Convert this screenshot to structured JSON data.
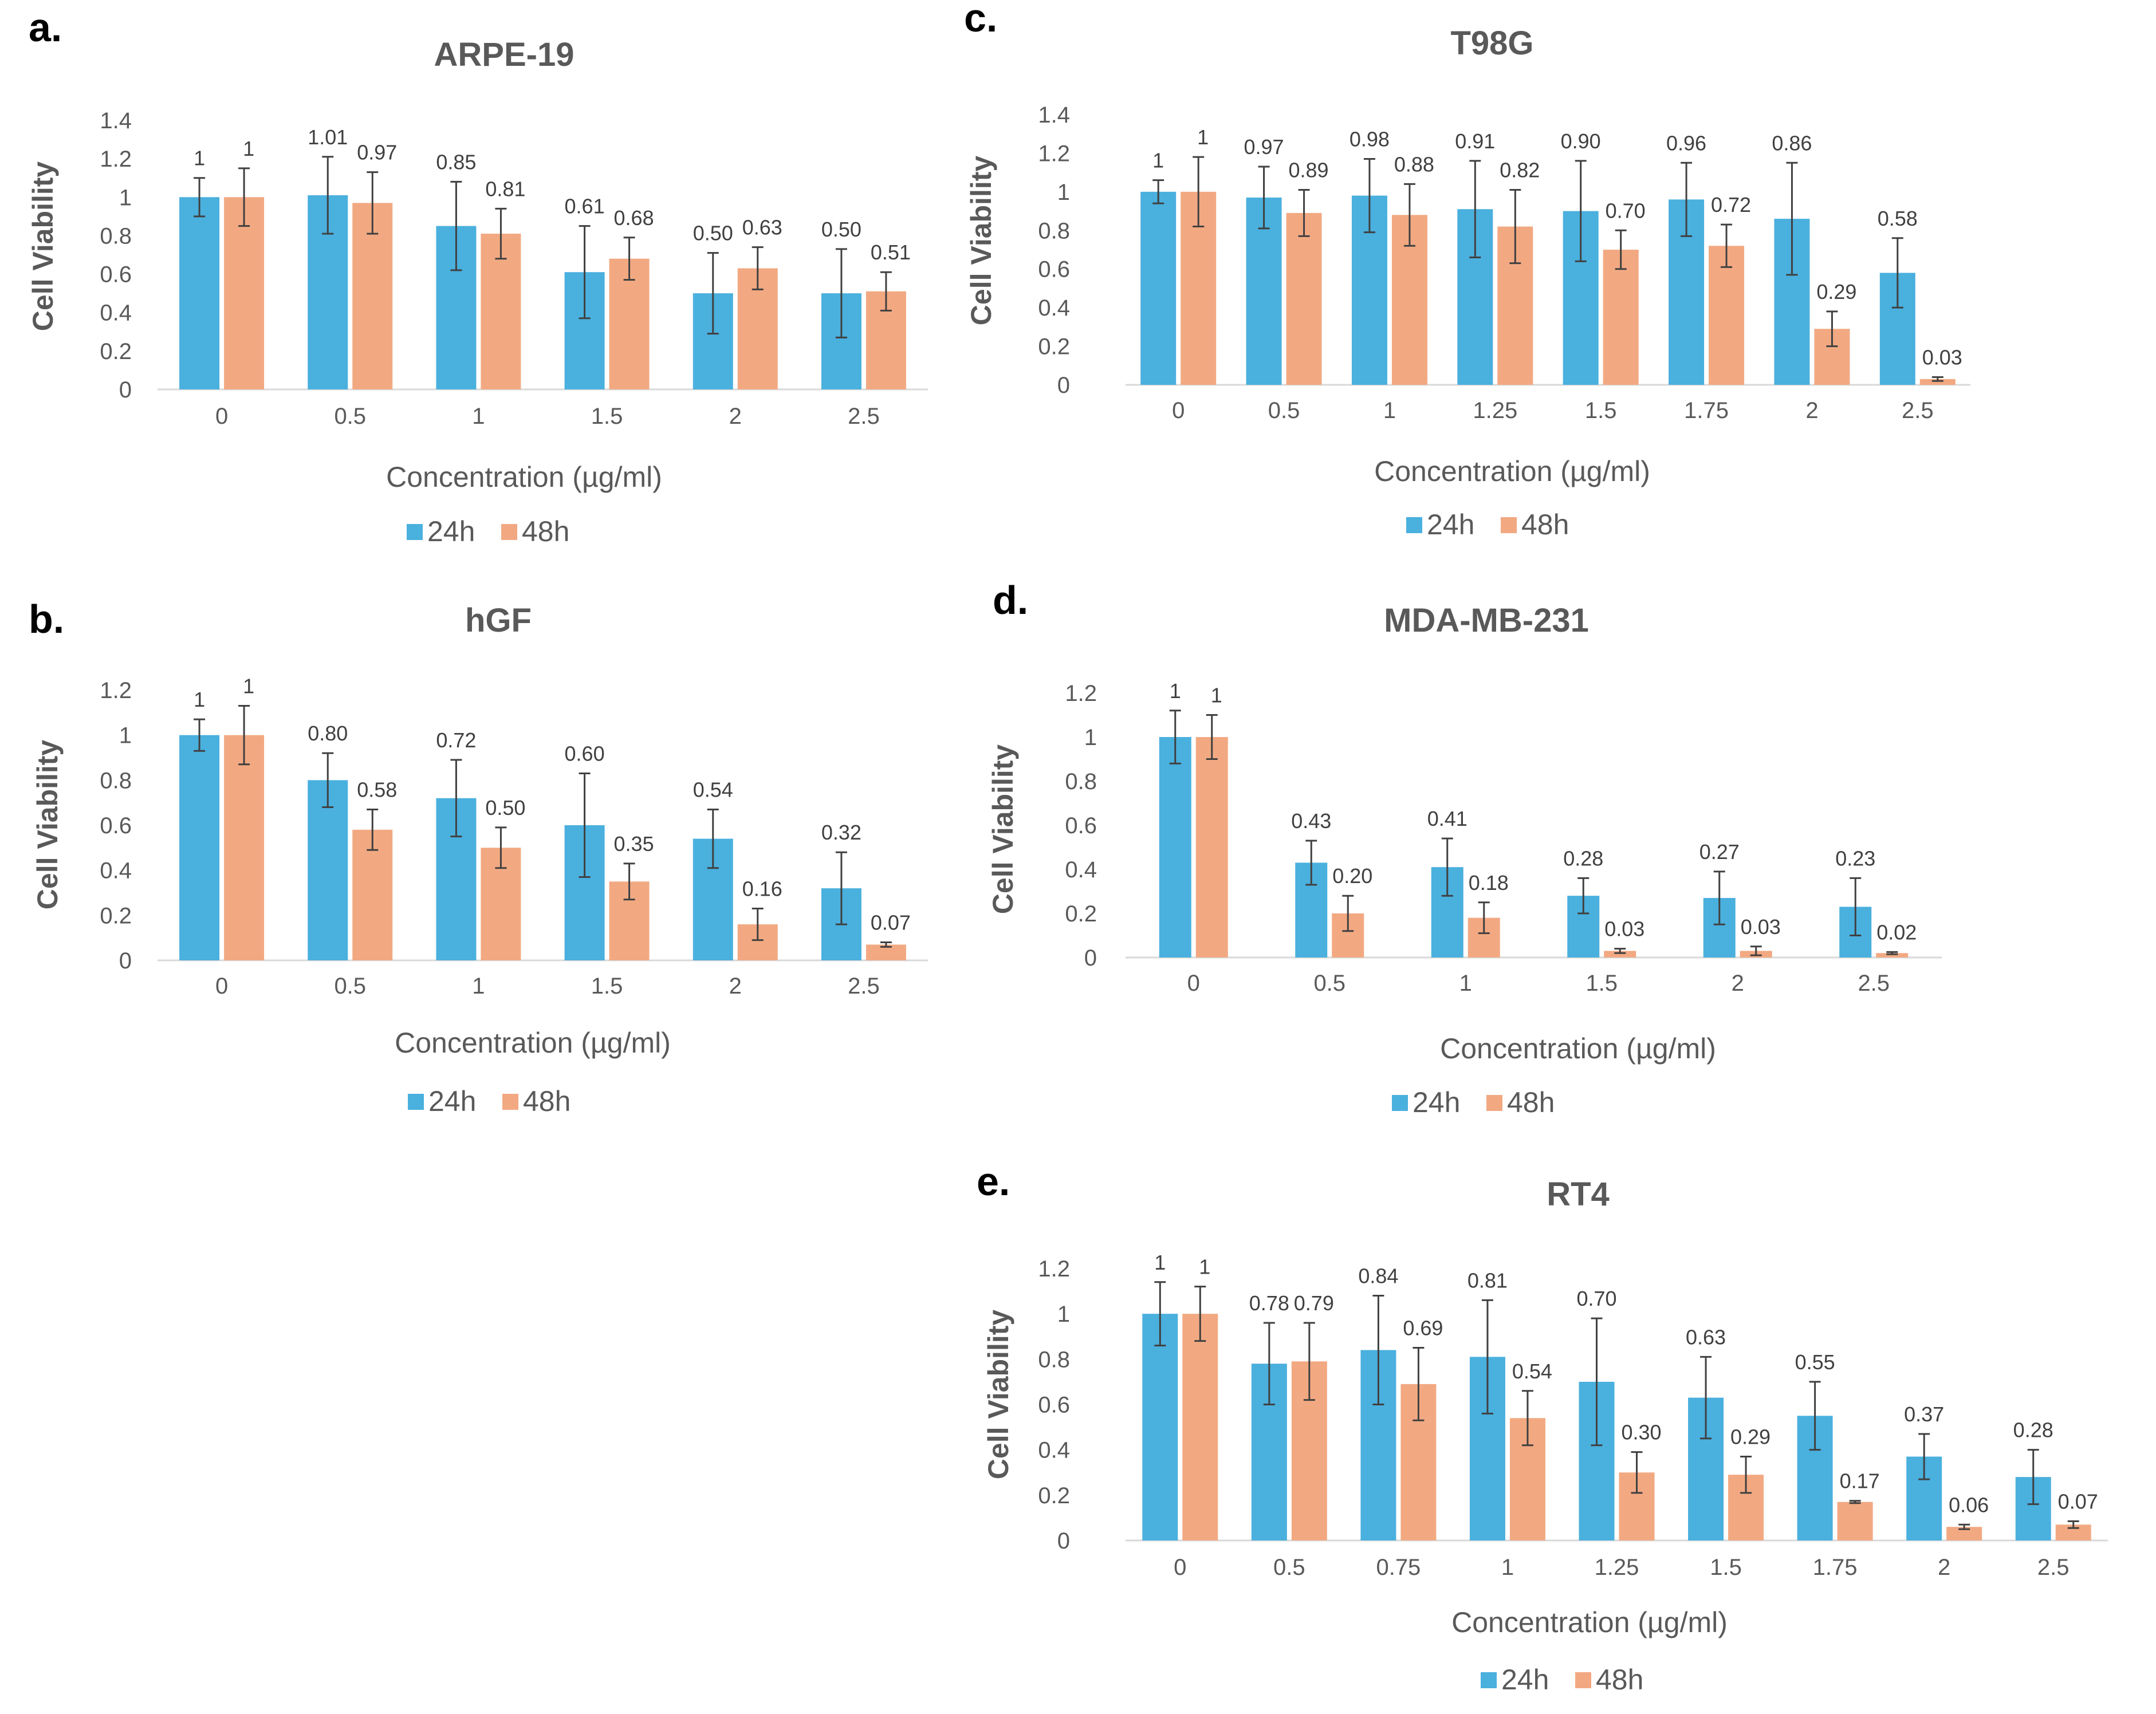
{
  "colors": {
    "24h": "#4ab0de",
    "48h": "#f2a982",
    "axis": "#d9d9d9",
    "errbar": "#404040"
  },
  "chart_data": [
    {
      "id": "a",
      "panel_label": "a.",
      "type": "bar",
      "title": "ARPE-19",
      "xlabel": "Concentration (µg/ml)",
      "ylabel": "Cell Viability",
      "ylim": [
        0,
        1.4
      ],
      "yticks": [
        "0",
        "0.2",
        "0.4",
        "0.6",
        "0.8",
        "1",
        "1.2",
        "1.4"
      ],
      "categories": [
        "0",
        "0.5",
        "1",
        "1.5",
        "2",
        "2.5"
      ],
      "series": [
        {
          "name": "24h",
          "values": [
            1,
            1.01,
            0.85,
            0.61,
            0.5,
            0.5
          ],
          "errors": [
            0.1,
            0.2,
            0.23,
            0.24,
            0.21,
            0.23
          ],
          "labels": [
            "1",
            "1.01",
            "0.85",
            "0.61",
            "0.50",
            "0.50"
          ]
        },
        {
          "name": "48h",
          "values": [
            1,
            0.97,
            0.81,
            0.68,
            0.63,
            0.51
          ],
          "errors": [
            0.15,
            0.16,
            0.13,
            0.11,
            0.11,
            0.1
          ],
          "labels": [
            "1",
            "0.97",
            "0.81",
            "0.68",
            "0.63",
            "0.51"
          ]
        }
      ],
      "legend": [
        "24h",
        "48h"
      ]
    },
    {
      "id": "b",
      "panel_label": "b.",
      "type": "bar",
      "title": "hGF",
      "xlabel": "Concentration (µg/ml)",
      "ylabel": "Cell Viability",
      "ylim": [
        0,
        1.2
      ],
      "yticks": [
        "0",
        "0.2",
        "0.4",
        "0.6",
        "0.8",
        "1",
        "1.2"
      ],
      "categories": [
        "0",
        "0.5",
        "1",
        "1.5",
        "2",
        "2.5"
      ],
      "series": [
        {
          "name": "24h",
          "values": [
            1,
            0.8,
            0.72,
            0.6,
            0.54,
            0.32
          ],
          "errors": [
            0.07,
            0.12,
            0.17,
            0.23,
            0.13,
            0.16
          ],
          "labels": [
            "1",
            "0.80",
            "0.72",
            "0.60",
            "0.54",
            "0.32"
          ]
        },
        {
          "name": "48h",
          "values": [
            1,
            0.58,
            0.5,
            0.35,
            0.16,
            0.07
          ],
          "errors": [
            0.13,
            0.09,
            0.09,
            0.08,
            0.07,
            0.01
          ],
          "labels": [
            "1",
            "0.58",
            "0.50",
            "0.35",
            "0.16",
            "0.07"
          ]
        }
      ],
      "legend": [
        "24h",
        "48h"
      ]
    },
    {
      "id": "c",
      "panel_label": "c.",
      "type": "bar",
      "title": "T98G",
      "xlabel": "Concentration (µg/ml)",
      "ylabel": "Cell Viability",
      "ylim": [
        0,
        1.4
      ],
      "yticks": [
        "0",
        "0.2",
        "0.4",
        "0.6",
        "0.8",
        "1",
        "1.2",
        "1.4"
      ],
      "categories": [
        "0",
        "0.5",
        "1",
        "1.25",
        "1.5",
        "1.75",
        "2",
        "2.5"
      ],
      "series": [
        {
          "name": "24h",
          "values": [
            1,
            0.97,
            0.98,
            0.91,
            0.9,
            0.96,
            0.86,
            0.58
          ],
          "errors": [
            0.06,
            0.16,
            0.19,
            0.25,
            0.26,
            0.19,
            0.29,
            0.18
          ],
          "labels": [
            "1",
            "0.97",
            "0.98",
            "0.91",
            "0.90",
            "0.96",
            "0.86",
            "0.58"
          ]
        },
        {
          "name": "48h",
          "values": [
            1,
            0.89,
            0.88,
            0.82,
            0.7,
            0.72,
            0.29,
            0.03
          ],
          "errors": [
            0.18,
            0.12,
            0.16,
            0.19,
            0.1,
            0.11,
            0.09,
            0.01
          ],
          "labels": [
            "1",
            "0.89",
            "0.88",
            "0.82",
            "0.70",
            "0.72",
            "0.29",
            "0.03"
          ]
        }
      ],
      "legend": [
        "24h",
        "48h"
      ]
    },
    {
      "id": "d",
      "panel_label": "d.",
      "type": "bar",
      "title": "MDA-MB-231",
      "xlabel": "Concentration (µg/ml)",
      "ylabel": "Cell Viability",
      "ylim": [
        0,
        1.2
      ],
      "yticks": [
        "0",
        "0.2",
        "0.4",
        "0.6",
        "0.8",
        "1",
        "1.2"
      ],
      "categories": [
        "0",
        "0.5",
        "1",
        "1.5",
        "2",
        "2.5"
      ],
      "series": [
        {
          "name": "24h",
          "values": [
            1,
            0.43,
            0.41,
            0.28,
            0.27,
            0.23
          ],
          "errors": [
            0.12,
            0.1,
            0.13,
            0.08,
            0.12,
            0.13
          ],
          "labels": [
            "1",
            "0.43",
            "0.41",
            "0.28",
            "0.27",
            "0.23"
          ]
        },
        {
          "name": "48h",
          "values": [
            1,
            0.2,
            0.18,
            0.03,
            0.03,
            0.02
          ],
          "errors": [
            0.1,
            0.08,
            0.07,
            0.01,
            0.02,
            0.005
          ],
          "labels": [
            "1",
            "0.20",
            "0.18",
            "0.03",
            "0.03",
            "0.02"
          ]
        }
      ],
      "legend": [
        "24h",
        "48h"
      ]
    },
    {
      "id": "e",
      "panel_label": "e.",
      "type": "bar",
      "title": "RT4",
      "xlabel": "Concentration (µg/ml)",
      "ylabel": "Cell Viability",
      "ylim": [
        0,
        1.2
      ],
      "yticks": [
        "0",
        "0.2",
        "0.4",
        "0.6",
        "0.8",
        "1",
        "1.2"
      ],
      "categories": [
        "0",
        "0.5",
        "0.75",
        "1",
        "1.25",
        "1.5",
        "1.75",
        "2",
        "2.5"
      ],
      "series": [
        {
          "name": "24h",
          "values": [
            1,
            0.78,
            0.84,
            0.81,
            0.7,
            0.63,
            0.55,
            0.37,
            0.28
          ],
          "errors": [
            0.14,
            0.18,
            0.24,
            0.25,
            0.28,
            0.18,
            0.15,
            0.1,
            0.12
          ],
          "labels": [
            "1",
            "0.78",
            "0.84",
            "0.81",
            "0.70",
            "0.63",
            "0.55",
            "0.37",
            "0.28"
          ]
        },
        {
          "name": "48h",
          "values": [
            1,
            0.79,
            0.69,
            0.54,
            0.3,
            0.29,
            0.17,
            0.06,
            0.07
          ],
          "errors": [
            0.12,
            0.17,
            0.16,
            0.12,
            0.09,
            0.08,
            0.005,
            0.01,
            0.015
          ],
          "labels": [
            "1",
            "0.79",
            "0.69",
            "0.54",
            "0.30",
            "0.29",
            "0.17",
            "0.06",
            "0.07"
          ]
        }
      ],
      "legend": [
        "24h",
        "48h"
      ]
    }
  ]
}
